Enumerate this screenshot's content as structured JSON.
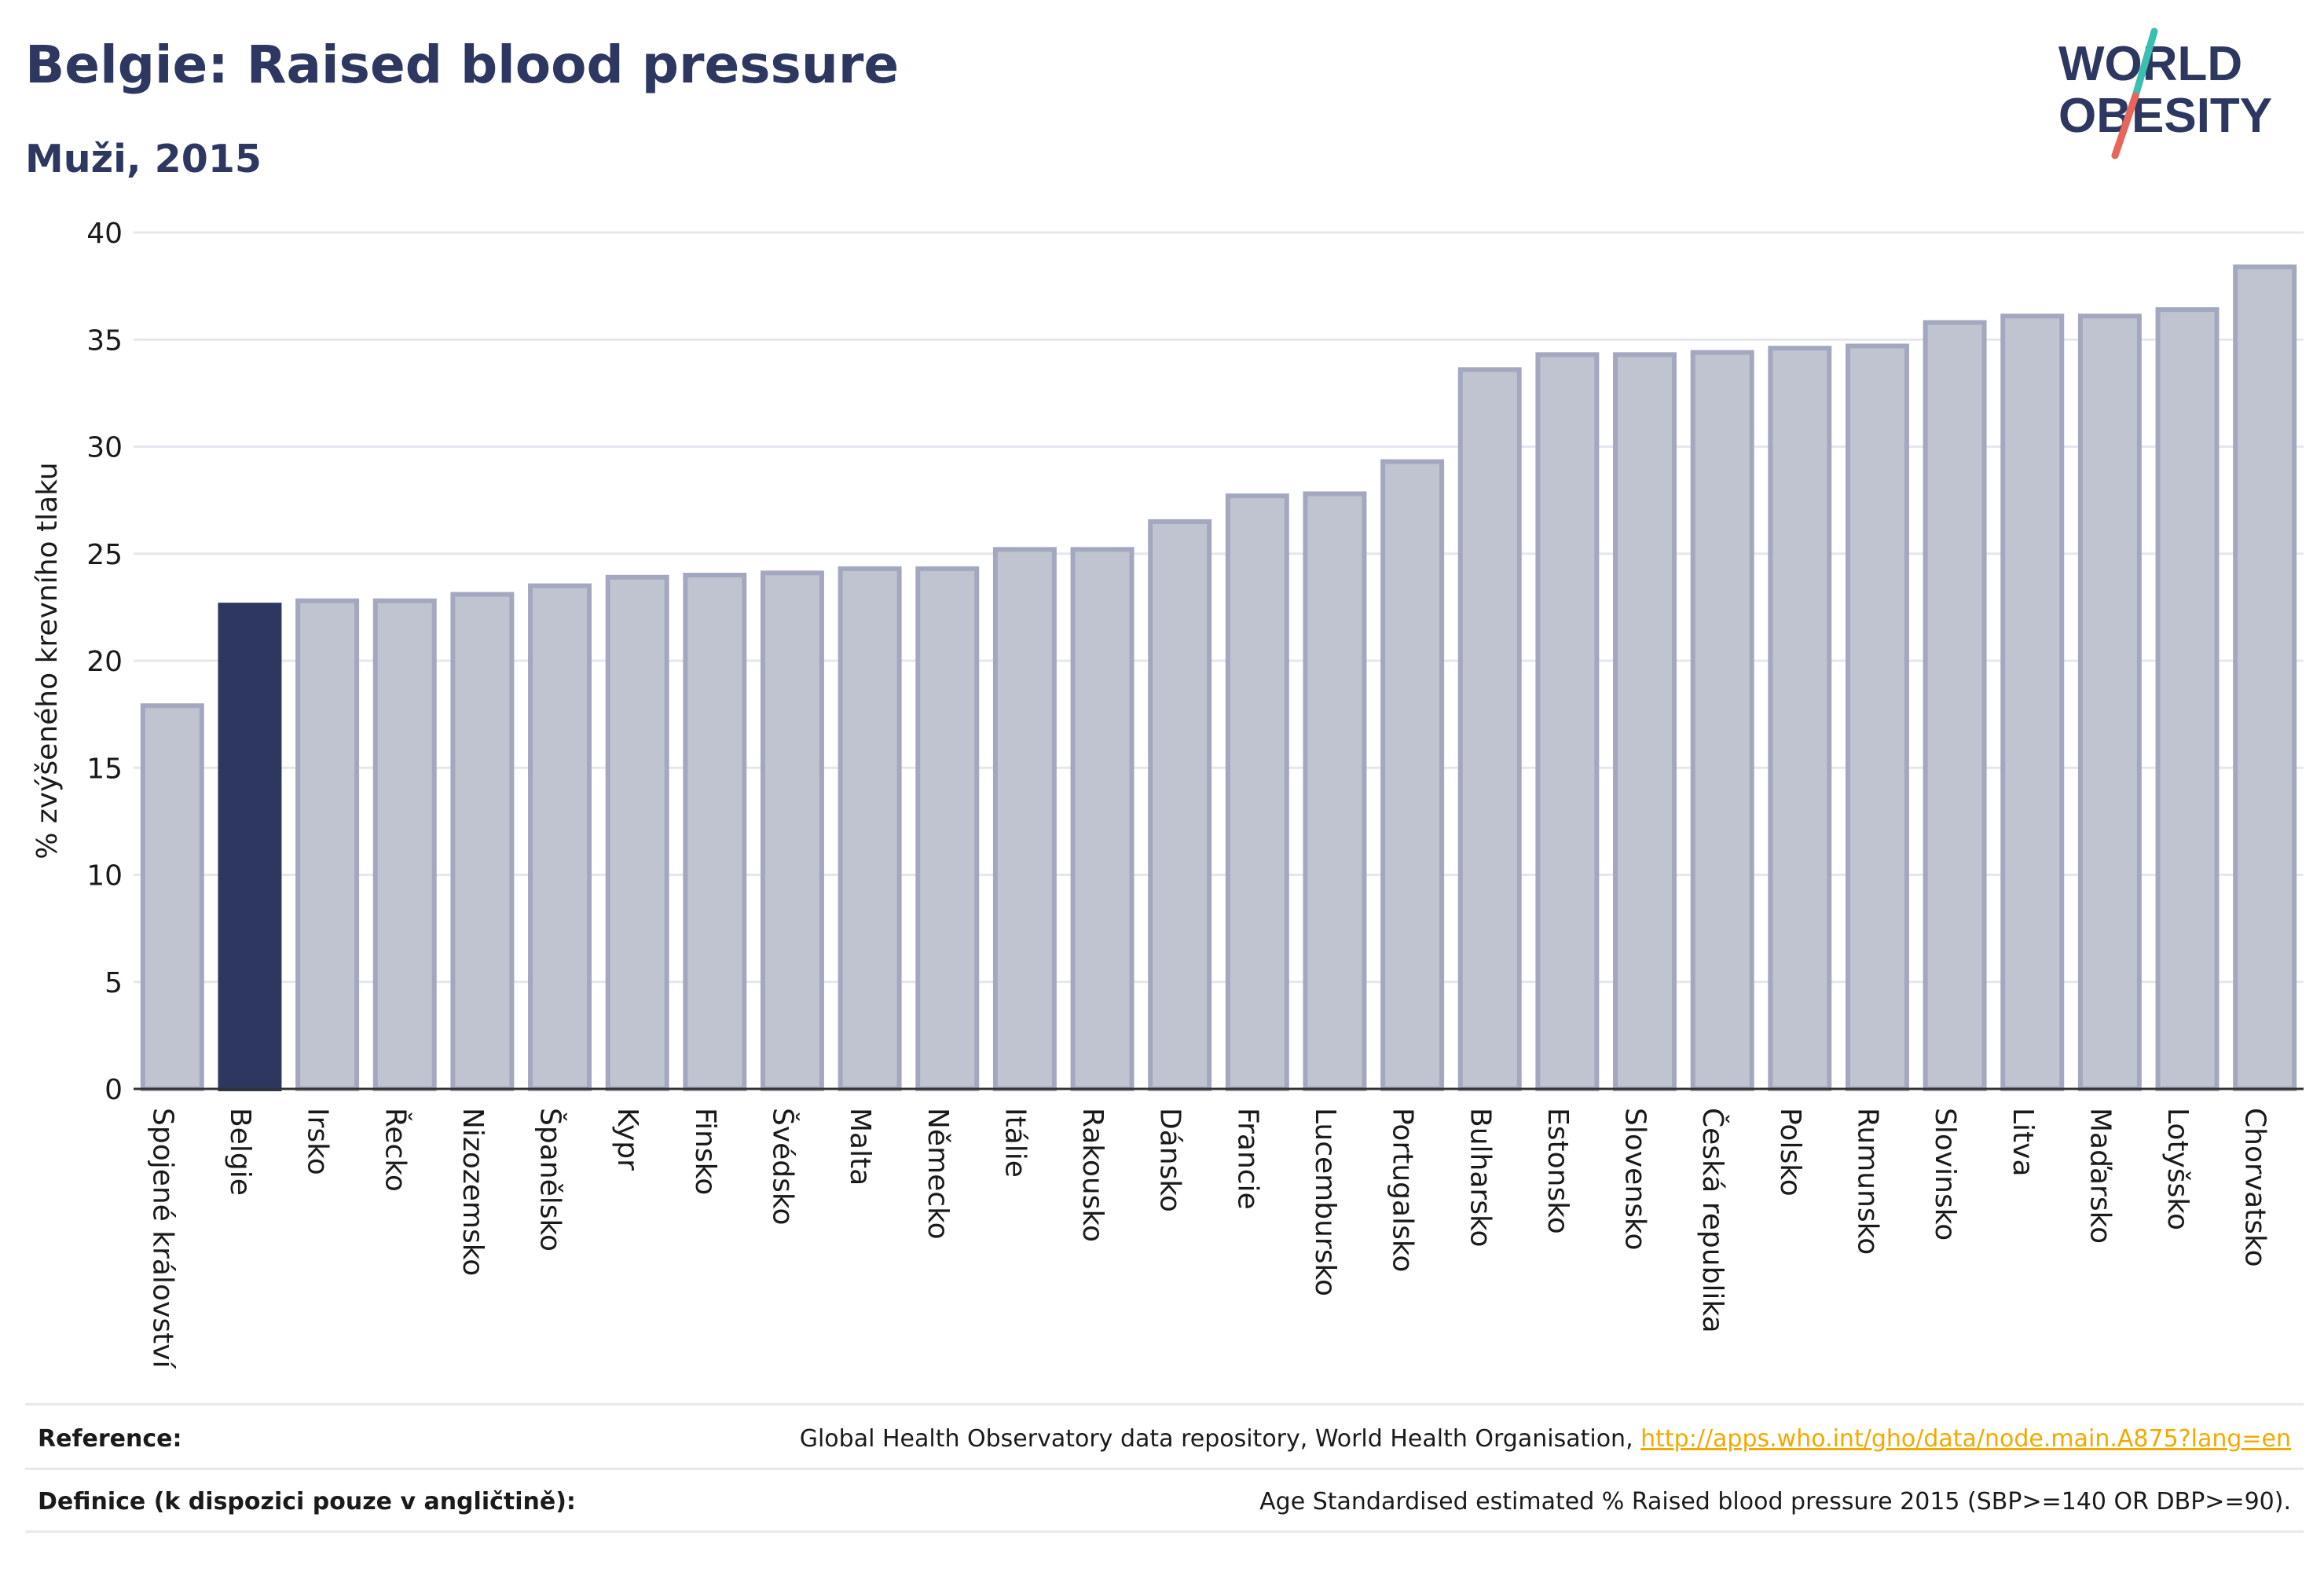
{
  "header": {
    "title": "Belgie: Raised blood pressure",
    "subtitle": "Muži, 2015"
  },
  "logo": {
    "line1": "WORLD",
    "line2": "OBESITY",
    "colors": {
      "text": "#2d3760",
      "slash_top": "#3bbfb0",
      "slash_bottom": "#e8655a"
    }
  },
  "chart_data": {
    "type": "bar",
    "ylabel": "% zvýšeného krevního tlaku",
    "xlabel": "",
    "ylim": [
      0,
      40
    ],
    "yticks": [
      0,
      5,
      10,
      15,
      20,
      25,
      30,
      35,
      40
    ],
    "grid": true,
    "highlight": "Belgie",
    "colors": {
      "bar": "#c0c3d0",
      "bar_edge": "#a3a8bf",
      "highlight": "#2d3760",
      "grid": "#e6e7ee",
      "axis": "#333333"
    },
    "categories": [
      "Spojené království",
      "Belgie",
      "Irsko",
      "Řecko",
      "Nizozemsko",
      "Španělsko",
      "Kypr",
      "Finsko",
      "Švédsko",
      "Malta",
      "Německo",
      "Itálie",
      "Rakousko",
      "Dánsko",
      "Francie",
      "Lucembursko",
      "Portugalsko",
      "Bulharsko",
      "Estonsko",
      "Slovensko",
      "Česká republika",
      "Polsko",
      "Rumunsko",
      "Slovinsko",
      "Litva",
      "Maďarsko",
      "Lotyšsko",
      "Chorvatsko"
    ],
    "values": [
      17.9,
      22.6,
      22.8,
      22.8,
      23.1,
      23.5,
      23.9,
      24.0,
      24.1,
      24.3,
      24.3,
      25.2,
      25.2,
      26.5,
      27.7,
      27.8,
      29.3,
      33.6,
      34.3,
      34.3,
      34.4,
      34.6,
      34.7,
      35.8,
      36.1,
      36.1,
      36.4,
      38.4
    ]
  },
  "footer": {
    "reference_label": "Reference:",
    "reference_text": "Global Health Observatory data repository, World Health Organisation, ",
    "reference_link": "http://apps.who.int/gho/data/node.main.A875?lang=en",
    "definition_label": "Definice (k dispozici pouze v angličtině):",
    "definition_text": "Age Standardised estimated % Raised blood pressure 2015 (SBP>=140 OR DBP>=90)."
  }
}
